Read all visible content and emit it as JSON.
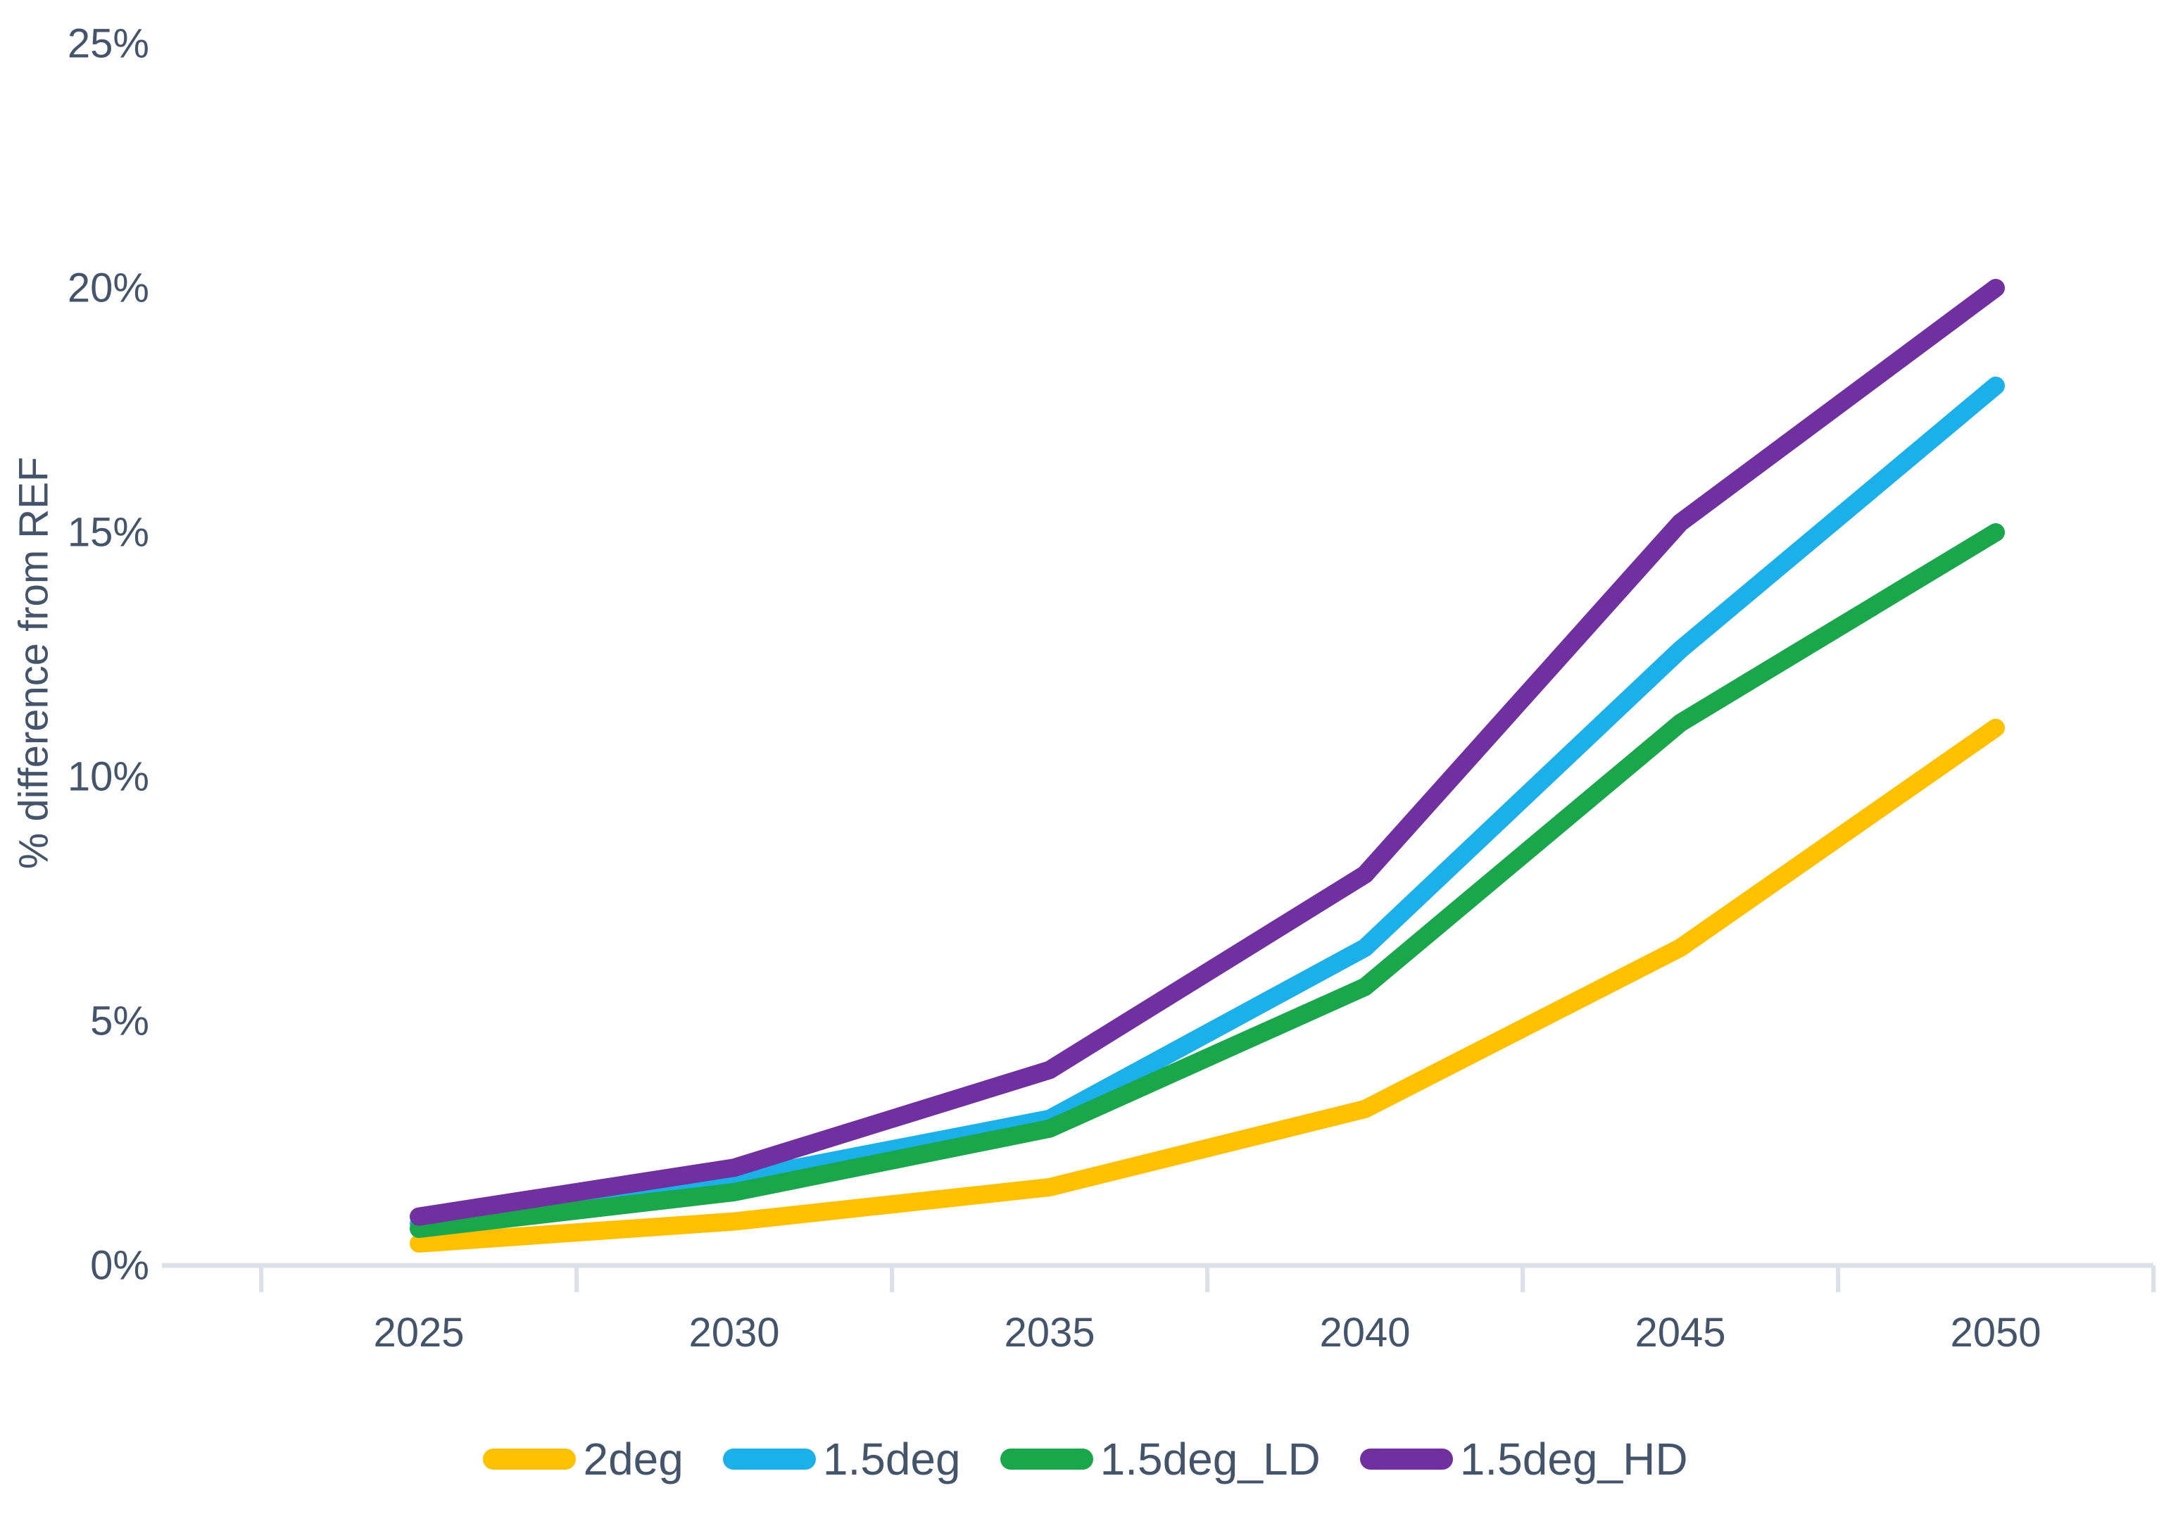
{
  "chart_data": {
    "type": "line",
    "title": "",
    "categories": [
      "2025",
      "2030",
      "2035",
      "2040",
      "2045",
      "2050"
    ],
    "series": [
      {
        "name": "2deg",
        "color": "#FFC000",
        "values": [
          0.45,
          0.9,
          1.6,
          3.2,
          6.5,
          11.0
        ]
      },
      {
        "name": "1.5deg",
        "color": "#1CB0EA",
        "values": [
          0.85,
          1.75,
          3.0,
          6.5,
          12.6,
          18.0
        ]
      },
      {
        "name": "1.5deg_LD",
        "color": "#1AA64A",
        "values": [
          0.75,
          1.5,
          2.8,
          5.7,
          11.1,
          15.0
        ]
      },
      {
        "name": "1.5deg_HD",
        "color": "#7030A0",
        "values": [
          1.0,
          2.0,
          4.0,
          8.0,
          15.2,
          20.0
        ]
      }
    ],
    "xlabel": "",
    "ylabel": "% difference from REF",
    "ylim": [
      0,
      25
    ],
    "y_tick_step": 5,
    "y_ticks": [
      "0%",
      "5%",
      "10%",
      "15%",
      "20%",
      "25%"
    ],
    "grid": false,
    "legend_position": "bottom"
  },
  "style": {
    "text_color": "#44546A",
    "axis_line_color": "#DCE1EA",
    "line_width": 26
  }
}
